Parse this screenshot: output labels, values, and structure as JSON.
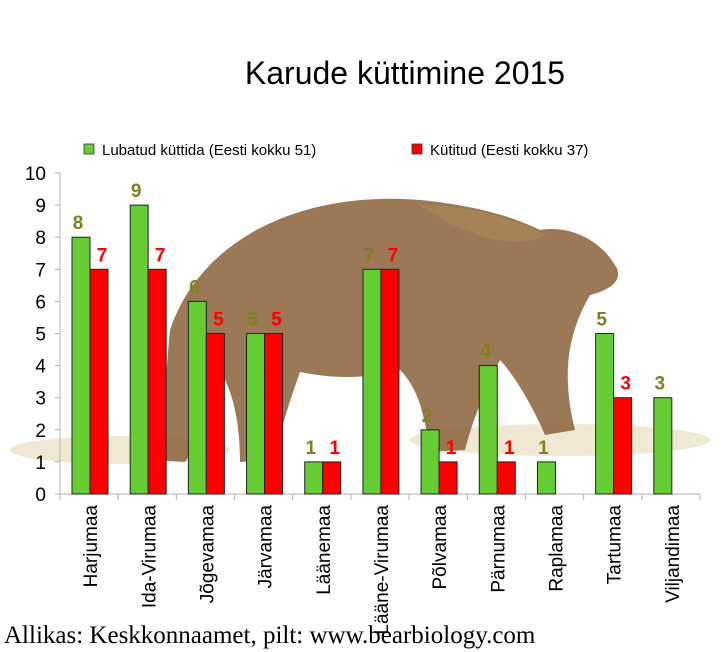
{
  "chart_data": {
    "type": "bar",
    "title": "Karude küttimine 2015",
    "categories": [
      "Harjumaa",
      "Ida-Virumaa",
      "Jõgevamaa",
      "Järvamaa",
      "Läänemaa",
      "Lääne-Virumaa",
      "Põlvamaa",
      "Pärnumaa",
      "Raplamaa",
      "Tartumaa",
      "Viljandimaa"
    ],
    "series": [
      {
        "name": "Lubatud küttida (Eesti kokku 51)",
        "color": "#66cc33",
        "label_color": "#808020",
        "values": [
          8,
          9,
          6,
          5,
          1,
          7,
          2,
          4,
          1,
          5,
          3
        ]
      },
      {
        "name": "Kütitud (Eesti kokku 37)",
        "color": "#ff0000",
        "label_color": "#ff0000",
        "values": [
          7,
          7,
          5,
          5,
          1,
          7,
          1,
          1,
          null,
          3,
          null
        ]
      }
    ],
    "ylim": [
      0,
      10
    ],
    "yticks": [
      0,
      1,
      2,
      3,
      4,
      5,
      6,
      7,
      8,
      9,
      10
    ],
    "legend": "top",
    "grid": false,
    "background_image": "bear"
  },
  "source": "Allikas: Keskkonnaamet, pilt: www.bearbiology.com"
}
